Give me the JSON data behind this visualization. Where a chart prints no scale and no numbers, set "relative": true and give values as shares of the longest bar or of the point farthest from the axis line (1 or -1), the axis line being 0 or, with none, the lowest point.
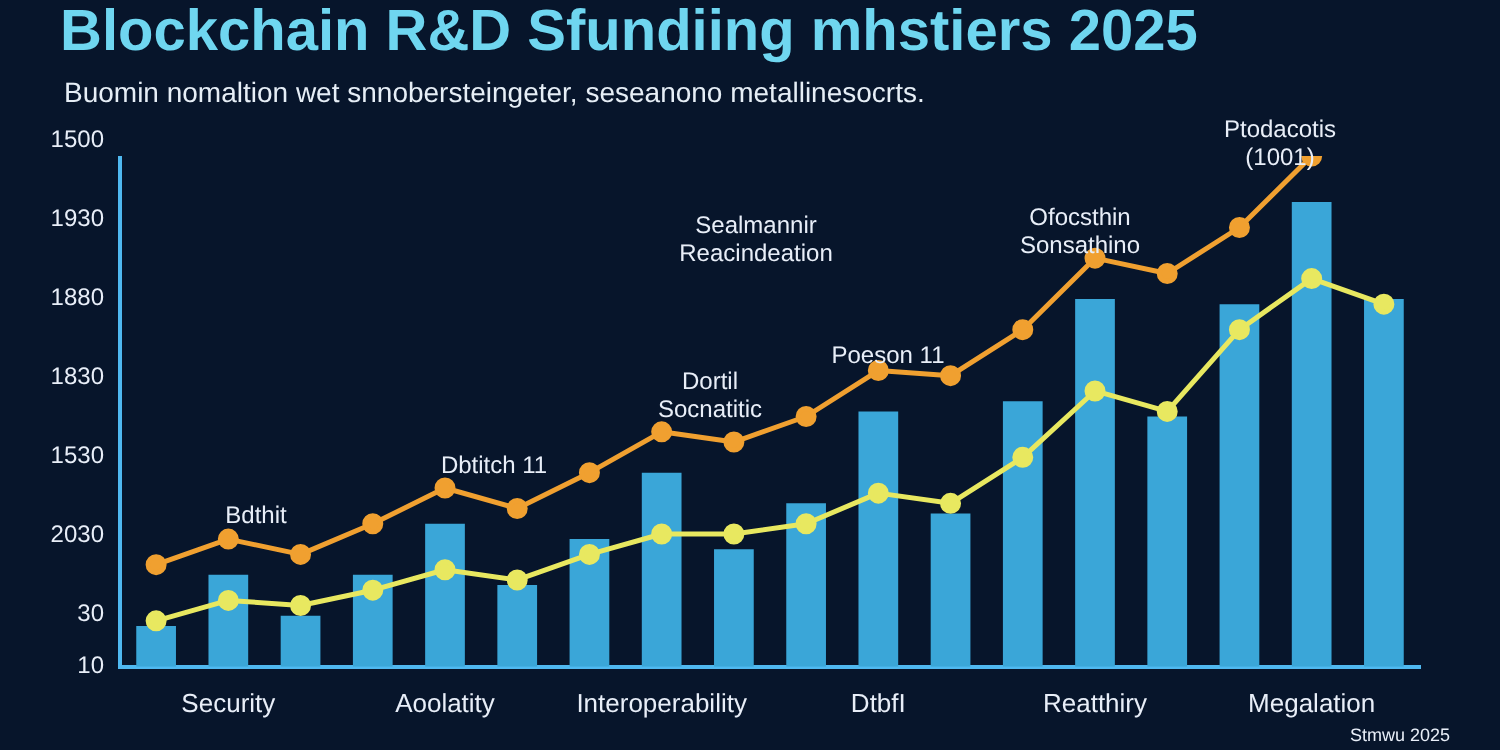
{
  "chart_data": {
    "type": "bar",
    "title": "Blockchain R&D Sfundiing mhstiers 2025",
    "subtitle": "Buomin nomaltion wet snnobersteingeter, seseanono metallinesocrts.",
    "relative": true,
    "legend": false,
    "categories": [
      null,
      "Security",
      null,
      null,
      "Aoolatity",
      null,
      null,
      "Interoperability",
      null,
      null,
      "DtbfI",
      null,
      null,
      "Reatthiry",
      null,
      null,
      "Megalation",
      null
    ],
    "series": [
      {
        "color": "#3aa6d8",
        "values": [
          0.08,
          0.18,
          0.1,
          0.18,
          0.28,
          0.16,
          0.25,
          0.38,
          0.23,
          0.32,
          0.5,
          0.3,
          0.52,
          0.72,
          0.49,
          0.71,
          0.91,
          0.72
        ]
      },
      {
        "type": "line",
        "marker": "circle",
        "color": "#f0a030",
        "values": [
          0.2,
          0.25,
          0.22,
          0.28,
          0.35,
          0.31,
          0.38,
          0.46,
          0.44,
          0.49,
          0.58,
          0.57,
          0.66,
          0.8,
          0.77,
          0.86,
          1,
          null
        ]
      },
      {
        "type": "line",
        "marker": "circle",
        "color": "#e8e860",
        "values": [
          0.09,
          0.13,
          0.12,
          0.15,
          0.19,
          0.17,
          0.22,
          0.26,
          0.26,
          0.28,
          0.34,
          0.32,
          0.41,
          0.54,
          0.5,
          0.66,
          0.76,
          0.71
        ]
      }
    ],
    "annotations": [
      "Bdthit",
      "Dbtitch 11",
      "Sealmannir Reacindeation",
      "Dortil Socnatitic",
      "Poeson 11",
      "Ofocsthin Sonsathino",
      "Ptodacotis (1001)",
      "Stmwu 2025",
      "1500",
      "1930",
      "1880",
      "1830",
      "1530",
      "2030",
      "30",
      "10"
    ]
  }
}
